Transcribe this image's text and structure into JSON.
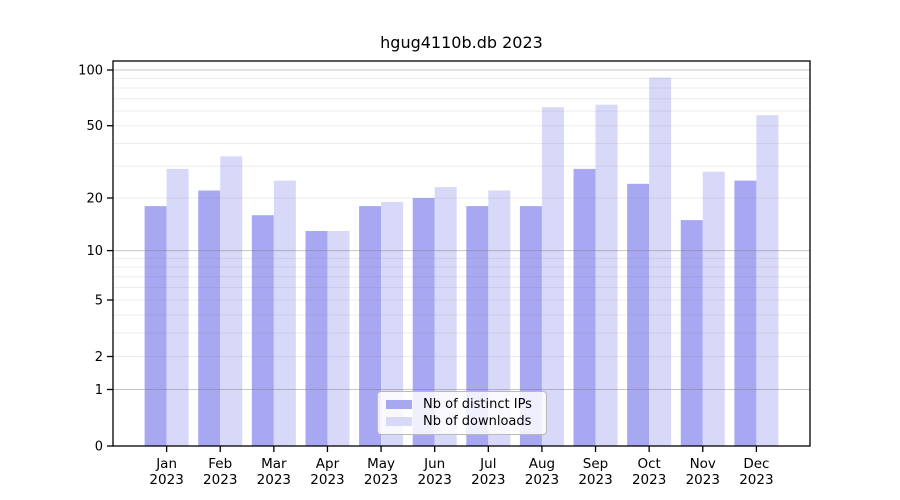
{
  "title": "hgug4110b.db 2023",
  "chart_data": {
    "type": "bar",
    "title": "hgug4110b.db 2023",
    "scale": "log(1+x)",
    "grid": true,
    "legend_position": "lower center",
    "categories": [
      "Jan",
      "Feb",
      "Mar",
      "Apr",
      "May",
      "Jun",
      "Jul",
      "Aug",
      "Sep",
      "Oct",
      "Nov",
      "Dec"
    ],
    "year_label": "2023",
    "series": [
      {
        "name": "Nb of distinct IPs",
        "color": "#a8a8f2",
        "values": [
          18,
          22,
          16,
          13,
          18,
          20,
          18,
          18,
          29,
          24,
          15,
          25
        ]
      },
      {
        "name": "Nb of downloads",
        "color": "#d8d8f8",
        "values": [
          29,
          34,
          25,
          13,
          19,
          23,
          22,
          63,
          65,
          91,
          28,
          57
        ]
      }
    ],
    "y_ticks": [
      0,
      1,
      2,
      5,
      10,
      20,
      50,
      100
    ],
    "y_tick_labels": [
      "0",
      "1",
      "2",
      "5",
      "10",
      "20",
      "50",
      "100"
    ],
    "y_gridlines_minor": [
      2,
      3,
      4,
      5,
      6,
      7,
      8,
      9,
      20,
      30,
      40,
      50,
      60,
      70,
      80,
      90
    ],
    "y_gridlines_major": [
      1,
      10,
      100
    ],
    "ylim": [
      0,
      100
    ]
  }
}
